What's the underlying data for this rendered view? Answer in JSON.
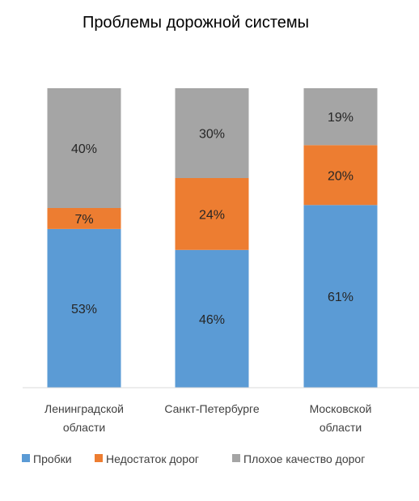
{
  "chart_data": {
    "type": "bar",
    "stacked": true,
    "normalized": true,
    "title": "Проблемы дорожной системы",
    "categories": [
      [
        "Ленинградской",
        "области"
      ],
      [
        "Санкт-Петербурге"
      ],
      [
        "Московской",
        "области"
      ]
    ],
    "series": [
      {
        "name": "Пробки",
        "color": "#5B9BD5",
        "values": [
          53,
          46,
          61
        ],
        "labels": [
          "53%",
          "46%",
          "61%"
        ]
      },
      {
        "name": "Недостаток дорог",
        "color": "#ED7D31",
        "values": [
          7,
          24,
          20
        ],
        "labels": [
          "7%",
          "24%",
          "20%"
        ]
      },
      {
        "name": "Плохое качество дорог",
        "color": "#A5A5A5",
        "values": [
          40,
          30,
          19
        ],
        "labels": [
          "40%",
          "30%",
          "19%"
        ]
      }
    ],
    "ylim": [
      0,
      100
    ],
    "grid": false,
    "legend": "bottom",
    "xlabel": "",
    "ylabel": ""
  }
}
